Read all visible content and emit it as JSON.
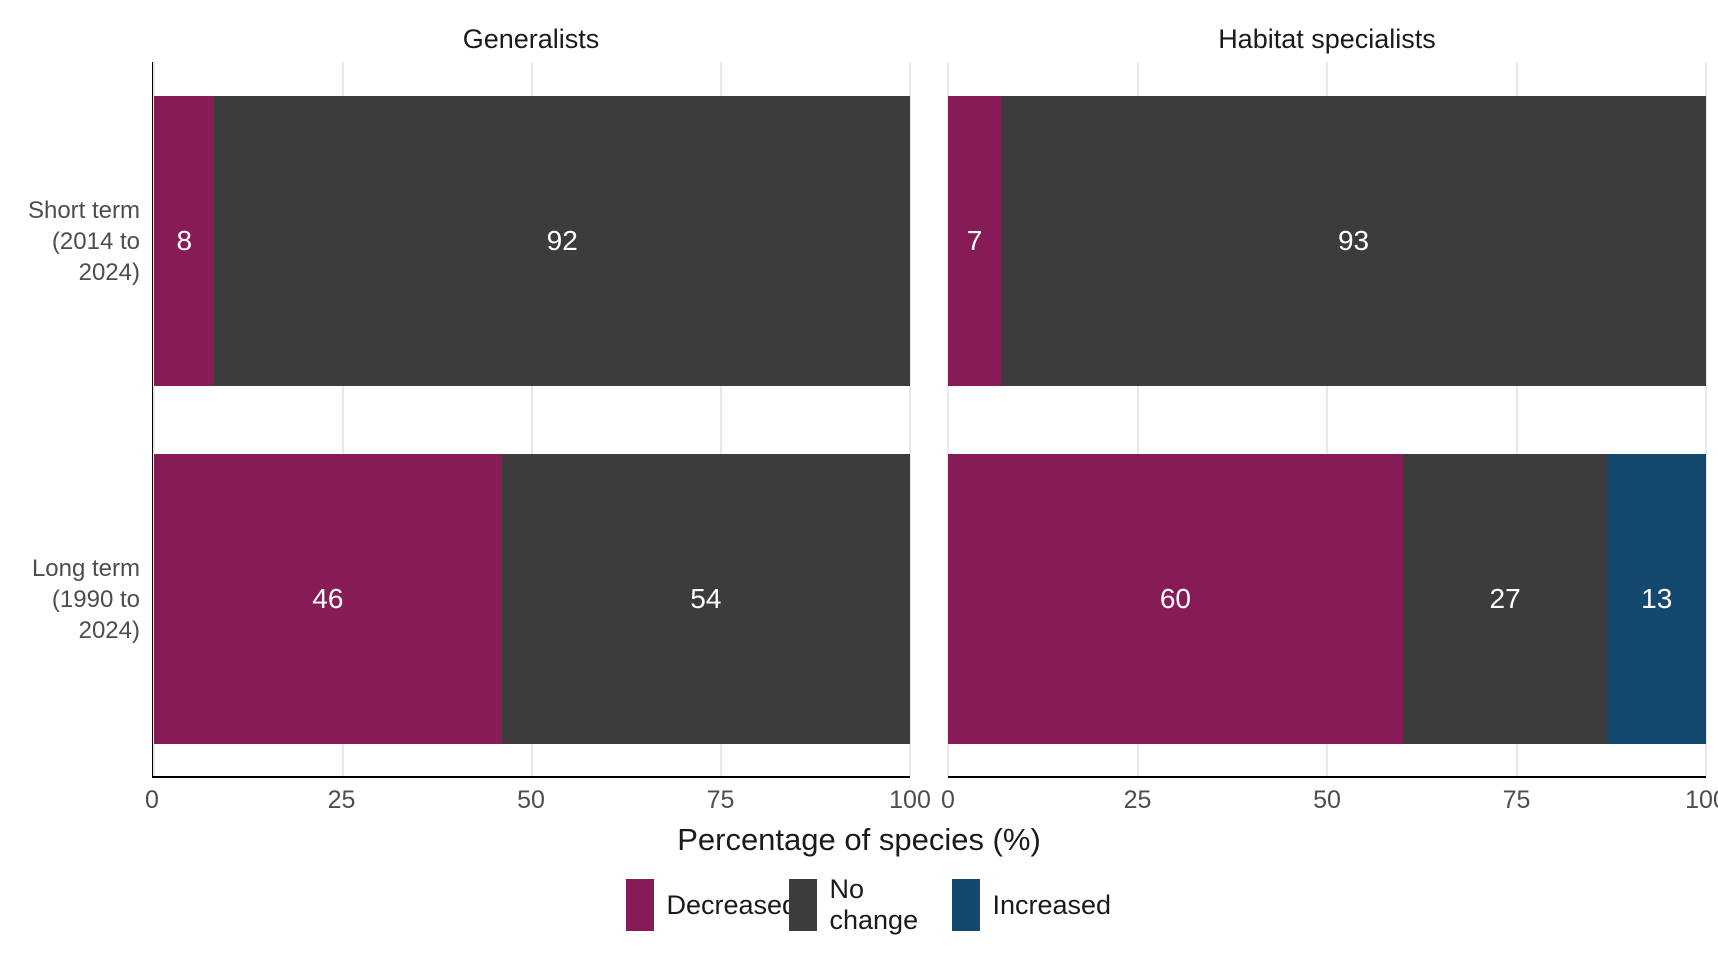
{
  "chart_data": {
    "type": "bar",
    "orientation": "horizontal",
    "stacked": true,
    "title": "",
    "xlabel": "Percentage of species (%)",
    "ylabel": "",
    "x_axis": {
      "range": [
        0,
        100
      ],
      "ticks": [
        0,
        25,
        50,
        75,
        100
      ]
    },
    "grid": "vertical-light",
    "legend_position": "bottom-center",
    "y_categories": [
      {
        "lines": [
          "Short term",
          "(2014 to",
          "2024)"
        ]
      },
      {
        "lines": [
          "Long term",
          "(1990 to",
          "2024)"
        ]
      }
    ],
    "facets": [
      {
        "title": "Generalists",
        "rows": [
          {
            "category": "Short term (2014 to 2024)",
            "segments": [
              {
                "name": "Decreased",
                "value": 8
              },
              {
                "name": "No change",
                "value": 92
              }
            ]
          },
          {
            "category": "Long term (1990 to 2024)",
            "segments": [
              {
                "name": "Decreased",
                "value": 46
              },
              {
                "name": "No change",
                "value": 54
              }
            ]
          }
        ]
      },
      {
        "title": "Habitat specialists",
        "rows": [
          {
            "category": "Short term (2014 to 2024)",
            "segments": [
              {
                "name": "Decreased",
                "value": 7
              },
              {
                "name": "No change",
                "value": 93
              }
            ]
          },
          {
            "category": "Long term (1990 to 2024)",
            "segments": [
              {
                "name": "Decreased",
                "value": 60
              },
              {
                "name": "No change",
                "value": 27
              },
              {
                "name": "Increased",
                "value": 13
              }
            ]
          }
        ]
      }
    ],
    "legend": [
      {
        "label": "Decreased",
        "color": "#871b55"
      },
      {
        "label": "No change",
        "color": "#3c3c3c"
      },
      {
        "label": "Increased",
        "color": "#15486f"
      }
    ],
    "colors": {
      "Decreased": "#871b55",
      "No change": "#3c3c3c",
      "Increased": "#15486f"
    },
    "style": {
      "gridline_color": "#e8e8e8",
      "axis_line_color": "#000000",
      "tick_label_color": "#4d4d4d",
      "bar_label_color": "#ffffff"
    }
  }
}
